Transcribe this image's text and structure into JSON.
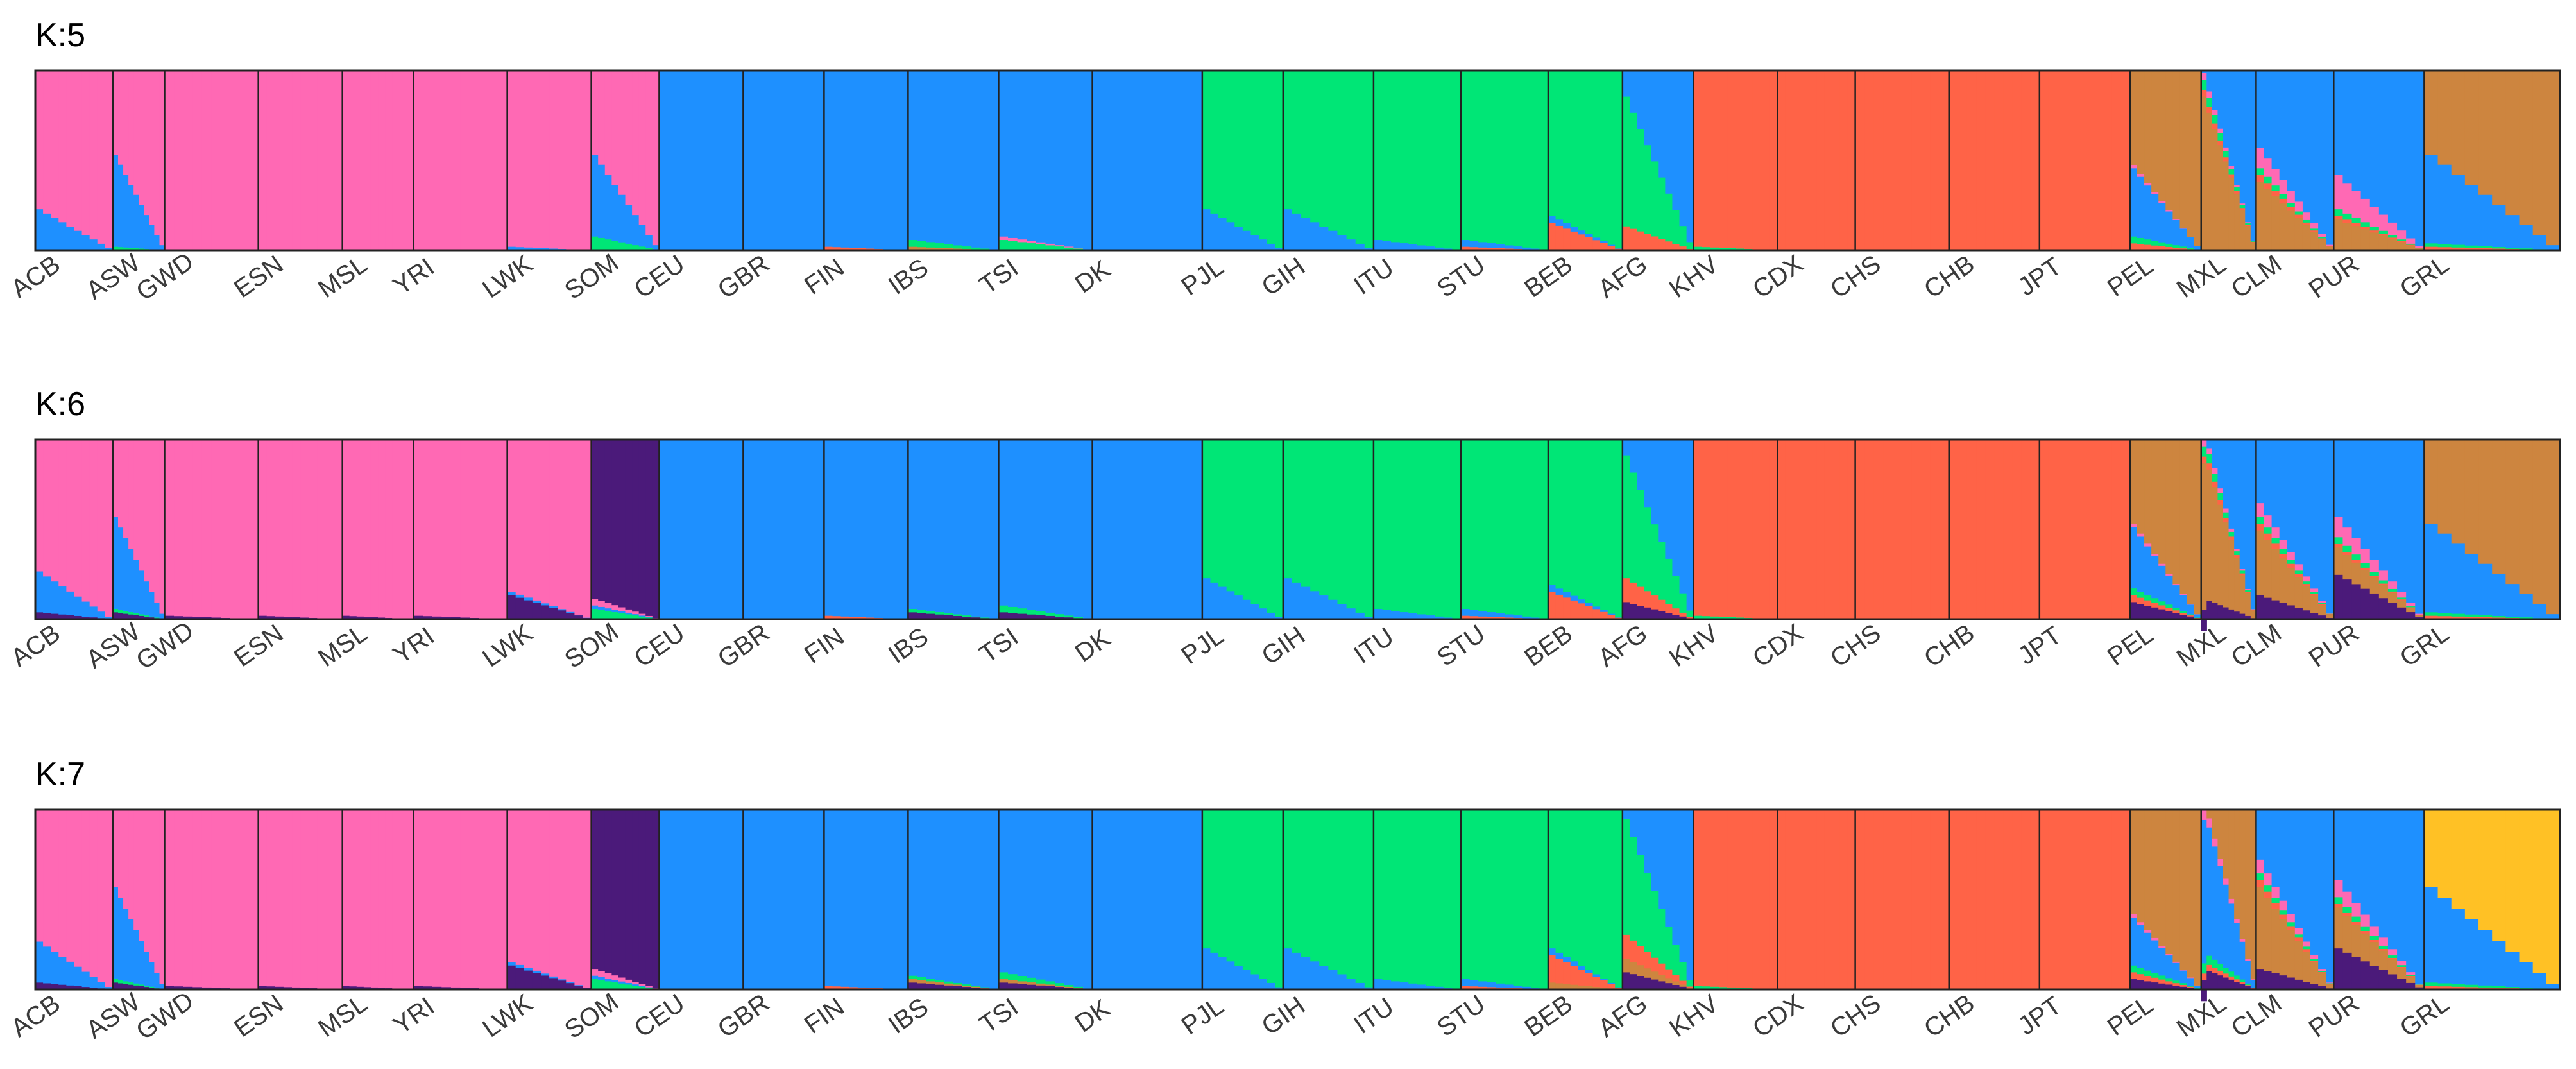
{
  "chart_data": {
    "type": "bar",
    "stacked": true,
    "description_free": true,
    "populations": [
      "ACB",
      "ASW",
      "GWD",
      "ESN",
      "MSL",
      "YRI",
      "LWK",
      "SOM",
      "CEU",
      "GBR",
      "FIN",
      "IBS",
      "TSI",
      "DK",
      "PJL",
      "GIH",
      "ITU",
      "STU",
      "BEB",
      "AFG",
      "KHV",
      "CDX",
      "CHS",
      "CHB",
      "JPT",
      "PEL",
      "MXL",
      "CLM",
      "PUR",
      "GRL"
    ],
    "population_width_weights": [
      1.2,
      0.8,
      1.45,
      1.3,
      1.1,
      1.45,
      1.3,
      1.05,
      1.3,
      1.25,
      1.3,
      1.4,
      1.45,
      1.7,
      1.25,
      1.4,
      1.35,
      1.35,
      1.15,
      1.1,
      1.3,
      1.2,
      1.45,
      1.4,
      1.4,
      1.1,
      0.85,
      1.2,
      1.4,
      2.1
    ],
    "component_colors": [
      "#ff69b4",
      "#1e90ff",
      "#00e676",
      "#ff6347",
      "#cd853f",
      "#4b1a7a",
      "#ffc125"
    ],
    "ylim": [
      0,
      1
    ],
    "panels": [
      {
        "title": "K:5",
        "K": 5,
        "mean_ancestry": [
          [
            0.88,
            0.12,
            0,
            0,
            0,
            0,
            0
          ],
          [
            0.72,
            0.27,
            0.01,
            0,
            0,
            0,
            0
          ],
          [
            1,
            0,
            0,
            0,
            0,
            0,
            0
          ],
          [
            1,
            0,
            0,
            0,
            0,
            0,
            0
          ],
          [
            1,
            0,
            0,
            0,
            0,
            0,
            0
          ],
          [
            1,
            0,
            0,
            0,
            0,
            0,
            0
          ],
          [
            0.99,
            0.01,
            0,
            0,
            0,
            0,
            0
          ],
          [
            0.72,
            0.24,
            0.04,
            0,
            0,
            0,
            0
          ],
          [
            0,
            1,
            0,
            0,
            0,
            0,
            0
          ],
          [
            0,
            1,
            0,
            0,
            0,
            0,
            0
          ],
          [
            0,
            0.99,
            0,
            0.01,
            0,
            0,
            0
          ],
          [
            0,
            0.97,
            0.02,
            0,
            0.01,
            0,
            0
          ],
          [
            0.01,
            0.96,
            0.03,
            0,
            0,
            0,
            0
          ],
          [
            0,
            1,
            0,
            0,
            0,
            0,
            0
          ],
          [
            0,
            0.12,
            0.88,
            0,
            0,
            0,
            0
          ],
          [
            0,
            0.12,
            0.88,
            0,
            0,
            0,
            0
          ],
          [
            0,
            0.03,
            0.97,
            0,
            0,
            0,
            0
          ],
          [
            0,
            0.02,
            0.97,
            0.01,
            0,
            0,
            0
          ],
          [
            0,
            0.02,
            0.9,
            0.08,
            0,
            0,
            0
          ],
          [
            0,
            0.55,
            0.38,
            0.07,
            0,
            0,
            0
          ],
          [
            0,
            0,
            0.01,
            0.99,
            0,
            0,
            0
          ],
          [
            0,
            0,
            0,
            1,
            0,
            0,
            0
          ],
          [
            0,
            0,
            0,
            1,
            0,
            0,
            0
          ],
          [
            0,
            0,
            0,
            1,
            0,
            0,
            0
          ],
          [
            0,
            0,
            0,
            1,
            0,
            0,
            0
          ],
          [
            0.01,
            0.2,
            0.02,
            0.02,
            0.75,
            0,
            0
          ],
          [
            0.02,
            0.48,
            0.03,
            0.02,
            0.45,
            0,
            0
          ],
          [
            0.06,
            0.7,
            0.02,
            0.02,
            0.2,
            0,
            0
          ],
          [
            0.1,
            0.78,
            0.02,
            0.01,
            0.09,
            0,
            0
          ],
          [
            0,
            0.26,
            0.01,
            0.01,
            0.72,
            0,
            0
          ]
        ]
      },
      {
        "title": "K:6",
        "K": 6,
        "mean_ancestry": [
          [
            0.86,
            0.12,
            0,
            0,
            0,
            0.02,
            0
          ],
          [
            0.7,
            0.27,
            0.01,
            0,
            0,
            0.02,
            0
          ],
          [
            0.99,
            0,
            0,
            0,
            0,
            0.01,
            0
          ],
          [
            0.99,
            0,
            0,
            0,
            0,
            0.01,
            0
          ],
          [
            0.99,
            0,
            0,
            0,
            0,
            0.01,
            0
          ],
          [
            0.99,
            0,
            0,
            0,
            0,
            0.01,
            0
          ],
          [
            0.92,
            0.01,
            0,
            0,
            0,
            0.07,
            0
          ],
          [
            0.02,
            0.01,
            0.03,
            0,
            0,
            0.94,
            0
          ],
          [
            0,
            1,
            0,
            0,
            0,
            0,
            0
          ],
          [
            0,
            1,
            0,
            0,
            0,
            0,
            0
          ],
          [
            0,
            0.99,
            0,
            0.01,
            0,
            0,
            0
          ],
          [
            0,
            0.97,
            0.01,
            0,
            0,
            0.02,
            0
          ],
          [
            0,
            0.96,
            0.02,
            0,
            0,
            0.02,
            0
          ],
          [
            0,
            1,
            0,
            0,
            0,
            0,
            0
          ],
          [
            0,
            0.12,
            0.88,
            0,
            0,
            0,
            0
          ],
          [
            0,
            0.12,
            0.88,
            0,
            0,
            0,
            0
          ],
          [
            0,
            0.03,
            0.97,
            0,
            0,
            0,
            0
          ],
          [
            0,
            0.02,
            0.97,
            0.01,
            0,
            0,
            0
          ],
          [
            0,
            0.02,
            0.9,
            0.08,
            0,
            0,
            0
          ],
          [
            0,
            0.52,
            0.36,
            0.07,
            0,
            0.05,
            0
          ],
          [
            0,
            0,
            0.01,
            0.99,
            0,
            0,
            0
          ],
          [
            0,
            0,
            0,
            1,
            0,
            0,
            0
          ],
          [
            0,
            0,
            0,
            1,
            0,
            0,
            0
          ],
          [
            0,
            0,
            0,
            1,
            0,
            0,
            0
          ],
          [
            0,
            0,
            0,
            1,
            0,
            0,
            0
          ],
          [
            0.01,
            0.18,
            0.02,
            0.02,
            0.72,
            0.05,
            0
          ],
          [
            0.02,
            0.44,
            0.03,
            0.02,
            0.43,
            0.06,
            0
          ],
          [
            0.04,
            0.66,
            0.02,
            0.02,
            0.19,
            0.07,
            0
          ],
          [
            0.06,
            0.7,
            0.02,
            0.01,
            0.08,
            0.13,
            0
          ],
          [
            0,
            0.26,
            0.01,
            0.01,
            0.72,
            0,
            0
          ]
        ]
      },
      {
        "title": "K:7",
        "K": 7,
        "mean_ancestry": [
          [
            0.86,
            0.12,
            0,
            0,
            0,
            0.02,
            0
          ],
          [
            0.7,
            0.27,
            0.01,
            0,
            0,
            0.02,
            0
          ],
          [
            0.99,
            0,
            0,
            0,
            0,
            0.01,
            0
          ],
          [
            0.99,
            0,
            0,
            0,
            0,
            0.01,
            0
          ],
          [
            0.99,
            0,
            0,
            0,
            0,
            0.01,
            0
          ],
          [
            0.99,
            0,
            0,
            0,
            0,
            0.01,
            0
          ],
          [
            0.92,
            0.01,
            0,
            0,
            0,
            0.07,
            0
          ],
          [
            0.02,
            0.01,
            0.03,
            0,
            0,
            0.94,
            0
          ],
          [
            0,
            1,
            0,
            0,
            0,
            0,
            0
          ],
          [
            0,
            1,
            0,
            0,
            0,
            0,
            0
          ],
          [
            0,
            0.99,
            0,
            0.01,
            0,
            0,
            0
          ],
          [
            0,
            0.96,
            0.01,
            0,
            0.01,
            0.02,
            0
          ],
          [
            0,
            0.95,
            0.02,
            0,
            0.01,
            0.02,
            0
          ],
          [
            0,
            1,
            0,
            0,
            0,
            0,
            0
          ],
          [
            0,
            0.12,
            0.88,
            0,
            0,
            0,
            0
          ],
          [
            0,
            0.12,
            0.88,
            0,
            0,
            0,
            0
          ],
          [
            0,
            0.03,
            0.97,
            0,
            0,
            0,
            0
          ],
          [
            0,
            0.02,
            0.97,
            0.01,
            0,
            0,
            0
          ],
          [
            0,
            0.02,
            0.88,
            0.08,
            0.02,
            0,
            0
          ],
          [
            0,
            0.5,
            0.34,
            0.07,
            0.04,
            0.05,
            0
          ],
          [
            0,
            0,
            0.01,
            0.99,
            0,
            0,
            0
          ],
          [
            0,
            0,
            0,
            1,
            0,
            0,
            0
          ],
          [
            0,
            0,
            0,
            1,
            0,
            0,
            0
          ],
          [
            0,
            0,
            0,
            1,
            0,
            0,
            0
          ],
          [
            0,
            0,
            0,
            1,
            0,
            0,
            0
          ],
          [
            0.01,
            0.14,
            0.02,
            0.02,
            0.78,
            0.03,
            0
          ],
          [
            0.03,
            0.42,
            0.03,
            0.02,
            0.44,
            0.06,
            0
          ],
          [
            0.04,
            0.62,
            0.02,
            0.02,
            0.24,
            0.06,
            0
          ],
          [
            0.05,
            0.68,
            0.02,
            0.01,
            0.12,
            0.12,
            0
          ],
          [
            0,
            0.28,
            0.01,
            0.01,
            0,
            0,
            0.7
          ]
        ]
      }
    ]
  }
}
